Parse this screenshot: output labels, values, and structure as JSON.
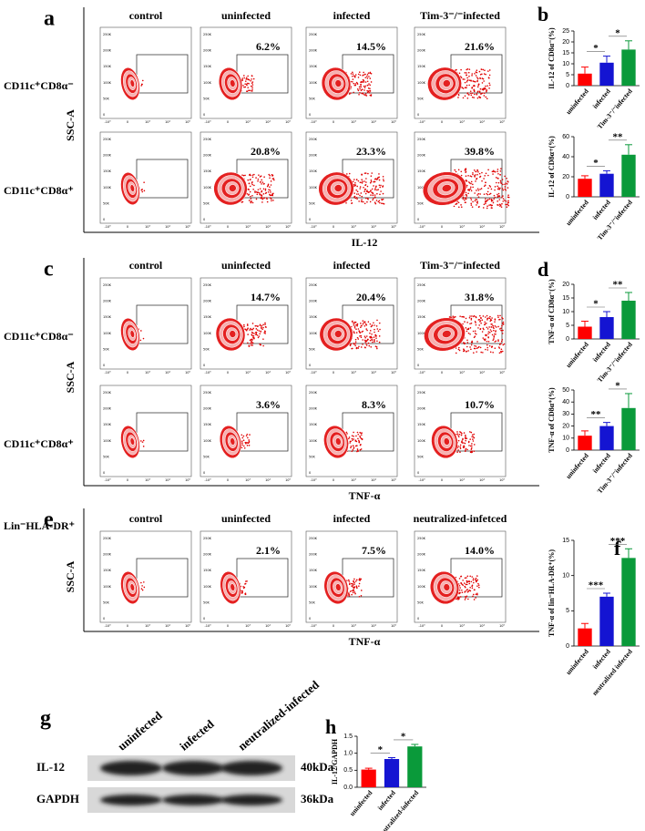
{
  "flow_panels": [
    {
      "letter": "a",
      "columns": [
        "control",
        "uninfected",
        "infected",
        "Tim-3⁻/⁻infected"
      ],
      "rows": [
        {
          "label": "CD11c⁺CD8α⁻",
          "percents": [
            "6.2%",
            "14.5%",
            "21.6%"
          ]
        },
        {
          "label": "CD11c⁺CD8α⁺",
          "percents": [
            "20.8%",
            "23.3%",
            "39.8%"
          ]
        }
      ],
      "y_label": "SSC-A",
      "x_label": "IL-12"
    },
    {
      "letter": "c",
      "columns": [
        "control",
        "uninfected",
        "infected",
        "Tim-3⁻/⁻infected"
      ],
      "rows": [
        {
          "label": "CD11c⁺CD8α⁻",
          "percents": [
            "14.7%",
            "20.4%",
            "31.8%"
          ]
        },
        {
          "label": "CD11c⁺CD8α⁺",
          "percents": [
            "3.6%",
            "8.3%",
            "10.7%"
          ]
        }
      ],
      "y_label": "SSC-A",
      "x_label": "TNF-α"
    },
    {
      "letter": "e",
      "columns": [
        "control",
        "uninfected",
        "infected",
        "neutralized-infetced"
      ],
      "rows": [
        {
          "label": "Lin⁻HLA-DR⁺",
          "percents": [
            "2.1%",
            "7.5%",
            "14.0%"
          ]
        }
      ],
      "y_label": "SSC-A",
      "x_label": "TNF-α"
    }
  ],
  "flow_axis": {
    "yticks": [
      "0",
      "50K",
      "100K",
      "150K",
      "200K",
      "250K"
    ],
    "xticks": [
      "-10³",
      "0",
      "10³",
      "10⁴",
      "10⁵"
    ]
  },
  "bar_panels": [
    {
      "letter": "b",
      "charts": [
        {
          "type": "bar",
          "y_label": "IL-12 of CD8α⁻(%)",
          "categories": [
            "uninfected",
            "infected",
            "Tim-3⁻/⁻infected"
          ],
          "values": [
            5.5,
            10.5,
            16.5
          ],
          "errors": [
            3,
            3,
            4
          ],
          "colors": [
            "#ff0000",
            "#1414d2",
            "#0a9a3a"
          ],
          "ylim": [
            0,
            25
          ],
          "yticks": [
            0,
            5,
            10,
            15,
            20,
            25
          ],
          "significance": [
            "*",
            "*"
          ]
        },
        {
          "type": "bar",
          "y_label": "IL-12 of CD8α+(%)",
          "categories": [
            "uninfected",
            "infected",
            "Tim-3⁻/⁻infected"
          ],
          "values": [
            18,
            23,
            42
          ],
          "errors": [
            3,
            3,
            10
          ],
          "colors": [
            "#ff0000",
            "#1414d2",
            "#0a9a3a"
          ],
          "ylim": [
            0,
            60
          ],
          "yticks": [
            0,
            20,
            40,
            60
          ],
          "significance": [
            "*",
            "**"
          ]
        }
      ]
    },
    {
      "letter": "d",
      "charts": [
        {
          "type": "bar",
          "y_label": "TNF-α of CD8α⁻(%)",
          "categories": [
            "uninfected",
            "infected",
            "Tim-3⁻/⁻infected"
          ],
          "values": [
            4.5,
            8,
            14
          ],
          "errors": [
            2,
            2,
            3
          ],
          "colors": [
            "#ff0000",
            "#1414d2",
            "#0a9a3a"
          ],
          "ylim": [
            0,
            20
          ],
          "yticks": [
            0,
            5,
            10,
            15,
            20
          ],
          "significance": [
            "*",
            "**"
          ]
        },
        {
          "type": "bar",
          "y_label": "TNF-α of CD8α⁺(%)",
          "categories": [
            "uninfected",
            "infected",
            "Tim-3⁻/⁻infected"
          ],
          "values": [
            12,
            20,
            35
          ],
          "errors": [
            4,
            3,
            12
          ],
          "colors": [
            "#ff0000",
            "#1414d2",
            "#0a9a3a"
          ],
          "ylim": [
            0,
            50
          ],
          "yticks": [
            0,
            10,
            20,
            30,
            40,
            50
          ],
          "significance": [
            "**",
            "*"
          ]
        }
      ]
    },
    {
      "letter": "f",
      "charts": [
        {
          "type": "bar",
          "y_label": "TNF-α of lin⁻HLA-DR⁺(%)",
          "categories": [
            "uninfected",
            "infected",
            "neutralized infected"
          ],
          "values": [
            2.5,
            7,
            12.5
          ],
          "errors": [
            0.7,
            0.5,
            1.3
          ],
          "colors": [
            "#ff0000",
            "#1414d2",
            "#0a9a3a"
          ],
          "ylim": [
            0,
            15
          ],
          "yticks": [
            0,
            5,
            10,
            15
          ],
          "significance": [
            "***",
            "***"
          ]
        }
      ]
    },
    {
      "letter": "h",
      "charts": [
        {
          "type": "bar",
          "y_label": "IL-12/GAPDH",
          "categories": [
            "uninfected",
            "infected",
            "neutralized-infected"
          ],
          "values": [
            0.52,
            0.83,
            1.2
          ],
          "errors": [
            0.04,
            0.04,
            0.06
          ],
          "colors": [
            "#ff0000",
            "#1414d2",
            "#0a9a3a"
          ],
          "ylim": [
            0,
            1.5
          ],
          "yticks": [
            {
              "value": 0,
              "label": "0.0"
            },
            {
              "value": 0.5,
              "label": "0.5"
            },
            {
              "value": 1,
              "label": "1.0"
            },
            {
              "value": 1.5,
              "label": "1.5"
            }
          ],
          "significance": [
            "*",
            "*"
          ]
        }
      ]
    }
  ],
  "blot": {
    "letter": "g",
    "lanes": [
      "uninfected",
      "infected",
      "neutralized-infected"
    ],
    "rows": [
      {
        "label": "IL-12",
        "size": "40kDa"
      },
      {
        "label": "GAPDH",
        "size": "36kDa"
      }
    ]
  }
}
